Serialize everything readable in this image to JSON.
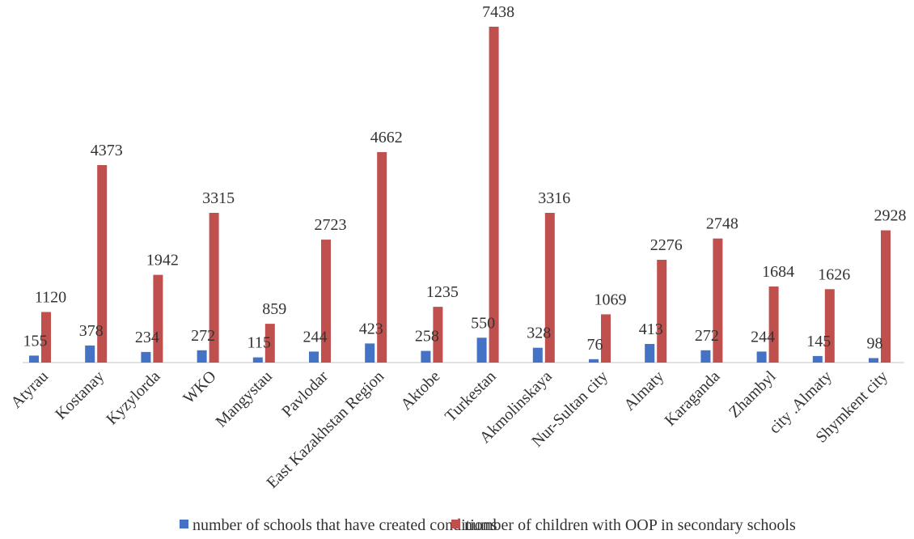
{
  "chart_data": {
    "type": "bar",
    "categories": [
      "Atyrau",
      "Kostanay",
      "Kyzylorda",
      "WKO",
      "Mangystau",
      "Pavlodar",
      "East Kazakhstan Region",
      "Aktobe",
      "Turkestan",
      "Akmolinskaya",
      "Nur-Sultan city",
      "Almaty",
      "Karaganda",
      "Zhambyl",
      "city .Almaty",
      "Shymkent city"
    ],
    "series": [
      {
        "name": "number of schools that have created conditions",
        "color": "#4472C4",
        "values": [
          155,
          378,
          234,
          272,
          115,
          244,
          423,
          258,
          550,
          328,
          76,
          413,
          272,
          244,
          145,
          98
        ],
        "labels": [
          "155",
          "378",
          "234",
          "272",
          "115",
          "244",
          "423",
          "258",
          "550",
          "328",
          "76",
          "413",
          "272",
          "244",
          "145",
          "98"
        ]
      },
      {
        "name": "number of children with OOP in secondary schools",
        "color": "#C0504D",
        "values": [
          1120,
          4373,
          1942,
          3315,
          859,
          2723,
          4662,
          1235,
          7438,
          3316,
          1069,
          2276,
          2748,
          1684,
          1626,
          2928
        ],
        "labels": [
          "1120",
          "4373",
          "1942",
          "3315",
          "859",
          "2723",
          "4662",
          "1235",
          "7438",
          "3316",
          "1069",
          "2276",
          "2748",
          "1684",
          "1626",
          "2928"
        ]
      }
    ],
    "ylim": [
      0,
      7438
    ],
    "grid": false,
    "legend_position": "bottom",
    "data_labels": true
  }
}
